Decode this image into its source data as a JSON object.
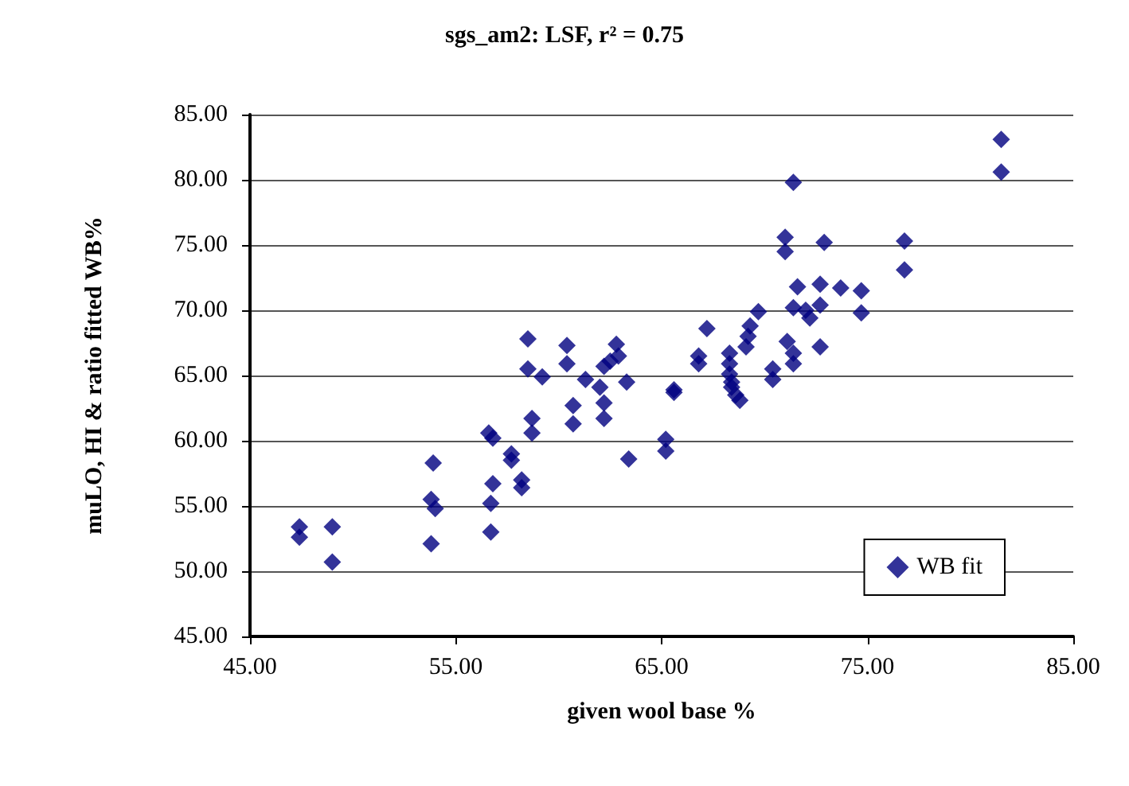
{
  "chart_data": {
    "type": "scatter",
    "title": "sgs_am2: LSF, r² = 0.75",
    "xlabel": "given wool base %",
    "ylabel": "muLO, HI & ratio fitted WB%",
    "xlim": [
      45,
      85
    ],
    "xticks": [
      {
        "value": 45,
        "label": "45.00"
      },
      {
        "value": 55,
        "label": "55.00"
      },
      {
        "value": 65,
        "label": "65.00"
      },
      {
        "value": 75,
        "label": "75.00"
      },
      {
        "value": 85,
        "label": "85.00"
      }
    ],
    "ylim": [
      45,
      85
    ],
    "yticks": [
      {
        "value": 45,
        "label": "45.00"
      },
      {
        "value": 50,
        "label": "50.00"
      },
      {
        "value": 55,
        "label": "55.00"
      },
      {
        "value": 60,
        "label": "60.00"
      },
      {
        "value": 65,
        "label": "65.00"
      },
      {
        "value": 70,
        "label": "70.00"
      },
      {
        "value": 75,
        "label": "75.00"
      },
      {
        "value": 80,
        "label": "80.00"
      },
      {
        "value": 85,
        "label": "85.00"
      }
    ],
    "grid": "y",
    "legend": "bottom right",
    "marker": "diamond",
    "series": [
      {
        "name": "WB fit",
        "color": "#000080",
        "x": [
          47.4,
          47.4,
          49.0,
          49.0,
          53.9,
          53.8,
          54.0,
          53.8,
          56.6,
          56.8,
          56.8,
          56.7,
          56.7,
          57.7,
          57.7,
          58.2,
          58.2,
          58.7,
          58.7,
          60.7,
          60.7,
          62.2,
          62.2,
          63.4,
          58.5,
          58.5,
          59.2,
          60.4,
          60.4,
          61.3,
          62.0,
          62.2,
          62.8,
          62.9,
          63.3,
          62.5,
          81.5,
          81.5,
          71.4,
          71.0,
          71.0,
          72.9,
          76.8,
          76.8,
          71.6,
          72.7,
          73.7,
          74.7,
          71.4,
          72.0,
          72.2,
          72.7,
          74.7,
          69.7,
          69.3,
          69.2,
          69.1,
          68.3,
          68.3,
          68.3,
          68.4,
          68.6,
          67.2,
          66.8,
          66.8,
          65.6,
          70.4,
          70.4,
          71.1,
          71.4,
          71.4,
          72.7,
          65.2,
          65.2,
          65.6,
          68.4,
          68.8
        ],
        "values": [
          53.4,
          52.6,
          53.4,
          50.7,
          58.3,
          55.5,
          54.8,
          52.1,
          60.6,
          60.2,
          56.7,
          55.2,
          53.0,
          59.0,
          58.5,
          57.0,
          56.4,
          61.7,
          60.6,
          62.7,
          61.3,
          62.9,
          61.7,
          58.6,
          67.8,
          65.5,
          64.9,
          67.3,
          65.9,
          64.7,
          64.1,
          65.7,
          67.4,
          66.5,
          64.5,
          66.1,
          83.1,
          80.6,
          79.8,
          75.6,
          74.5,
          75.2,
          75.3,
          73.1,
          71.8,
          72.0,
          71.7,
          71.5,
          70.2,
          70.0,
          69.4,
          70.4,
          69.8,
          69.9,
          68.8,
          68.0,
          67.2,
          66.7,
          65.9,
          65.1,
          64.5,
          63.5,
          68.6,
          66.5,
          65.9,
          63.9,
          65.5,
          64.7,
          67.6,
          66.7,
          65.9,
          67.2,
          60.1,
          59.2,
          63.7,
          64.1,
          63.1
        ]
      }
    ]
  }
}
